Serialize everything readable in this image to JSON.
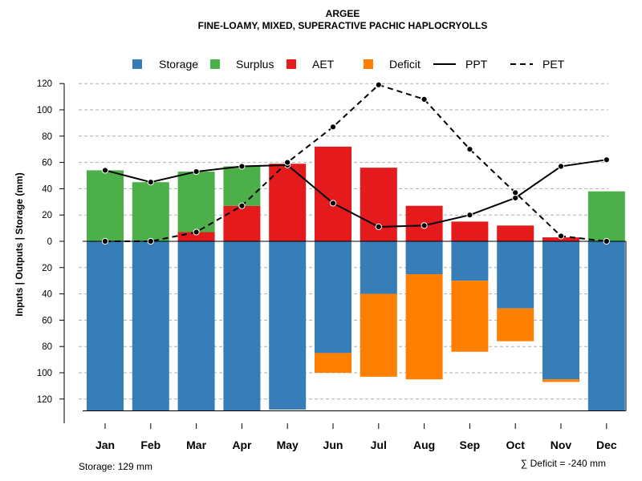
{
  "chart_data": {
    "type": "bar",
    "title": "ARGEE",
    "subtitle": "FINE-LOAMY, MIXED, SUPERACTIVE PACHIC HAPLOCRYOLLS",
    "ylabel": "Inputs | Outputs | Storage    (mm)",
    "ylim": [
      -129,
      120
    ],
    "yticks": [
      120,
      100,
      80,
      60,
      40,
      20,
      0,
      -20,
      -40,
      -60,
      -80,
      -100,
      -120
    ],
    "ytick_labels": [
      "120",
      "100",
      "80",
      "60",
      "40",
      "20",
      "0",
      "20",
      "40",
      "60",
      "80",
      "100",
      "120"
    ],
    "grid": "horizontal-dashed",
    "legend_placement": "top",
    "categories": [
      "Jan",
      "Feb",
      "Mar",
      "Apr",
      "May",
      "Jun",
      "Jul",
      "Aug",
      "Sep",
      "Oct",
      "Nov",
      "Dec"
    ],
    "stacked_positive": [
      {
        "name": "AET",
        "color": "#e41a1c",
        "values": [
          0,
          0,
          7,
          27,
          59,
          72,
          56,
          27,
          15,
          12,
          3,
          0
        ]
      },
      {
        "name": "Surplus",
        "color": "#4daf4a",
        "values": [
          54,
          45,
          46,
          30,
          0,
          0,
          0,
          0,
          0,
          0,
          0,
          38
        ]
      }
    ],
    "stacked_negative": [
      {
        "name": "Storage",
        "color": "#377eb8",
        "values": [
          129,
          129,
          129,
          129,
          128,
          85,
          40,
          25,
          30,
          51,
          105,
          129
        ]
      },
      {
        "name": "Deficit",
        "color": "#ff7f00",
        "values": [
          0,
          0,
          0,
          0,
          0,
          15,
          63,
          80,
          54,
          25,
          2,
          0
        ]
      }
    ],
    "lines": [
      {
        "name": "PPT",
        "style": "solid",
        "color": "#000000",
        "values": [
          54,
          45,
          53,
          57,
          58,
          29,
          11,
          12,
          20,
          33,
          57,
          62
        ]
      },
      {
        "name": "PET",
        "style": "dashed",
        "color": "#000000",
        "values": [
          0,
          0,
          7,
          27,
          60,
          87,
          119,
          108,
          70,
          37,
          4,
          0
        ]
      }
    ],
    "legend": [
      {
        "label": "Storage",
        "kind": "box",
        "color": "#377eb8"
      },
      {
        "label": "Surplus",
        "kind": "box",
        "color": "#4daf4a"
      },
      {
        "label": "AET",
        "kind": "box",
        "color": "#e41a1c"
      },
      {
        "label": "Deficit",
        "kind": "box",
        "color": "#ff7f00"
      },
      {
        "label": "PPT",
        "kind": "line-solid",
        "color": "#000000"
      },
      {
        "label": "PET",
        "kind": "line-dashed",
        "color": "#000000"
      }
    ],
    "annotations": {
      "storage": "Storage: 129 mm",
      "deficit": "∑ Deficit = -240 mm"
    }
  }
}
